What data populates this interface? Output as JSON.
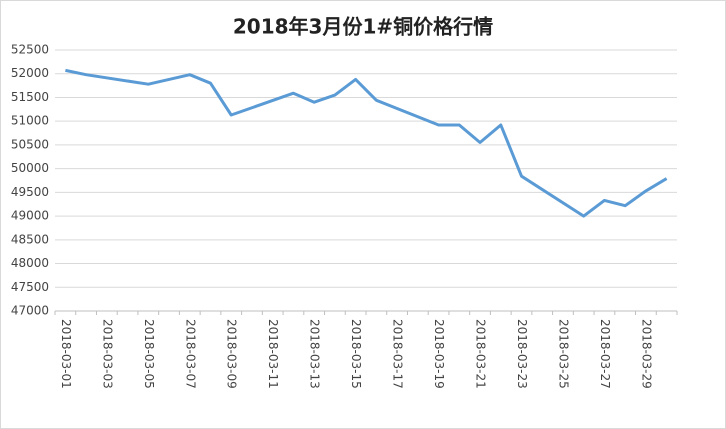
{
  "chart_data": {
    "type": "line",
    "title": "2018年3月份1#铜价格行情",
    "x": [
      "2018-03-01",
      "2018-03-02",
      "2018-03-05",
      "2018-03-07",
      "2018-03-08",
      "2018-03-09",
      "2018-03-12",
      "2018-03-13",
      "2018-03-14",
      "2018-03-15",
      "2018-03-16",
      "2018-03-19",
      "2018-03-20",
      "2018-03-21",
      "2018-03-22",
      "2018-03-23",
      "2018-03-26",
      "2018-03-27",
      "2018-03-28",
      "2018-03-29",
      "2018-03-30"
    ],
    "series": [
      {
        "name": "1#铜",
        "color": "#5b9bd5",
        "values": [
          52070,
          51980,
          51780,
          51980,
          51800,
          51130,
          51590,
          51400,
          51550,
          51880,
          51440,
          50920,
          50920,
          50550,
          50920,
          49840,
          49000,
          49330,
          49220,
          49530,
          49790
        ]
      }
    ],
    "xlim": [
      "2018-03-01",
      "2018-03-30"
    ],
    "xticks": [
      "2018-03-01",
      "2018-03-03",
      "2018-03-05",
      "2018-03-07",
      "2018-03-09",
      "2018-03-11",
      "2018-03-13",
      "2018-03-15",
      "2018-03-17",
      "2018-03-19",
      "2018-03-21",
      "2018-03-23",
      "2018-03-25",
      "2018-03-27",
      "2018-03-29"
    ],
    "ylim": [
      47000,
      52500
    ],
    "yticks": [
      47000,
      47500,
      48000,
      48500,
      49000,
      49500,
      50000,
      50500,
      51000,
      51500,
      52000,
      52500
    ],
    "grid": true
  }
}
